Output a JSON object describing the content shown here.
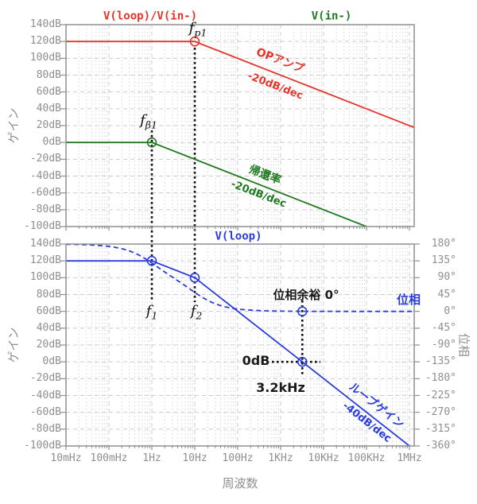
{
  "figure": {
    "colors": {
      "opamp_red": "#e5342a",
      "feedback_green": "#217a21",
      "loop_blue": "#2a3cdc",
      "tick_gray": "#8f8f8f",
      "grid_gray": "#cccccc",
      "spine_gray": "#909090",
      "marker_black": "#111111",
      "background": "#ffffff"
    },
    "labels": {
      "title_red": "V(loop)/V(in-)",
      "title_green": "V(in-)",
      "title_blue": "V(loop)",
      "ylabel_gain_top": "ゲイン",
      "ylabel_gain_bottom": "ゲイン",
      "ylabel_phase": "位相",
      "xlabel": "周波数",
      "opamp": "OPアンプ",
      "opamp_slope": "-20dB/dec",
      "feedback": "帰還率",
      "feedback_slope": "-20dB/dec",
      "loopgain": "ループゲイン",
      "loopgain_slope": "-40dB/dec",
      "phase_curve": "位相",
      "phase_margin": "位相余裕 0°",
      "zero_db": "0dB",
      "crossover_freq": "3.2kHz",
      "fp1": {
        "base": "f",
        "sub": "p1"
      },
      "fb1": {
        "base": "f",
        "sub": "β1"
      },
      "f1": {
        "base": "f",
        "sub": "1"
      },
      "f2": {
        "base": "f",
        "sub": "2"
      }
    },
    "ticks": {
      "gain_db": [
        "140dB",
        "120dB",
        "100dB",
        "80dB",
        "60dB",
        "40dB",
        "20dB",
        "0dB",
        "-20dB",
        "-40dB",
        "-60dB",
        "-80dB",
        "-100dB"
      ],
      "phase_deg": [
        "180°",
        "135°",
        "90°",
        "45°",
        "0°",
        "-45°",
        "-90°",
        "-135°",
        "-180°",
        "-225°",
        "-270°",
        "-315°",
        "-360°"
      ],
      "freq": [
        "10mHz",
        "100mHz",
        "1Hz",
        "10Hz",
        "100Hz",
        "1KHz",
        "10KHz",
        "100KHz",
        "1MHz"
      ]
    }
  },
  "chart_data": [
    {
      "type": "line",
      "panel": "top",
      "title": "V(loop)/V(in-) と V(in-) のボード線図(ゲイン)",
      "x_axis": {
        "label": "周波数",
        "scale": "log",
        "min_hz": 0.01,
        "max_hz": 1300000,
        "tick_labels": [
          "10mHz",
          "100mHz",
          "1Hz",
          "10Hz",
          "100Hz",
          "1KHz",
          "10KHz",
          "100KHz",
          "1MHz"
        ]
      },
      "y_axis": {
        "label": "ゲイン",
        "unit": "dB",
        "min": -100,
        "max": 140,
        "tick_step": 20
      },
      "grid": true,
      "series": [
        {
          "name": "V(loop)/V(in-)",
          "annotation": "OPアンプ",
          "slope": "-20dB/dec",
          "color_key": "opamp_red",
          "style": "solid",
          "points_f_db": [
            [
              0.01,
              120
            ],
            [
              10,
              120
            ],
            [
              1000000,
              20
            ]
          ],
          "pole": {
            "label": "fp1",
            "f_hz": 10,
            "db": 120
          }
        },
        {
          "name": "V(in-)",
          "annotation": "帰還率",
          "slope": "-20dB/dec",
          "color_key": "feedback_green",
          "style": "solid",
          "points_f_db": [
            [
              0.01,
              0
            ],
            [
              1,
              0
            ],
            [
              100000,
              -100
            ]
          ],
          "pole": {
            "label": "fβ1",
            "f_hz": 1,
            "db": 0
          }
        }
      ]
    },
    {
      "type": "line",
      "panel": "bottom",
      "title": "V(loop) ループゲインと位相",
      "x_axis": {
        "label": "周波数",
        "scale": "log",
        "min_hz": 0.01,
        "max_hz": 1300000,
        "tick_labels": [
          "10mHz",
          "100mHz",
          "1Hz",
          "10Hz",
          "100Hz",
          "1KHz",
          "10KHz",
          "100KHz",
          "1MHz"
        ]
      },
      "y_axis_left": {
        "label": "ゲイン",
        "unit": "dB",
        "min": -100,
        "max": 140,
        "tick_step": 20
      },
      "y_axis_right": {
        "label": "位相",
        "unit": "deg",
        "min": -360,
        "max": 180,
        "tick_step": 45
      },
      "grid": true,
      "series": [
        {
          "name": "V(loop)",
          "annotation": "ループゲイン",
          "slope": "-40dB/dec",
          "color_key": "loop_blue",
          "style": "solid",
          "points_f_db": [
            [
              0.01,
              120
            ],
            [
              1,
              120
            ],
            [
              10,
              100
            ],
            [
              3200,
              0
            ],
            [
              1000000,
              -100
            ]
          ],
          "breakpoints": [
            {
              "label": "f1",
              "f_hz": 1,
              "db": 120
            },
            {
              "label": "f2",
              "f_hz": 10,
              "db": 100
            }
          ],
          "crossover": {
            "db_label": "0dB",
            "freq_label": "3.2kHz",
            "f_hz": 3200,
            "db": 0
          }
        },
        {
          "name": "位相",
          "annotation": "位相",
          "color_key": "loop_blue",
          "style": "dashed",
          "model": "two_pole_phase",
          "f1_hz": 1,
          "f2_hz": 10,
          "start_deg": 180,
          "points_f_deg": [
            [
              0.01,
              180
            ],
            [
              0.1,
              174
            ],
            [
              1,
              129
            ],
            [
              10,
              51
            ],
            [
              100,
              6
            ],
            [
              1000,
              1
            ],
            [
              1000000,
              0
            ]
          ],
          "phase_margin": {
            "label": "位相余裕 0°",
            "deg": 0,
            "f_hz": 3200
          }
        }
      ]
    }
  ]
}
